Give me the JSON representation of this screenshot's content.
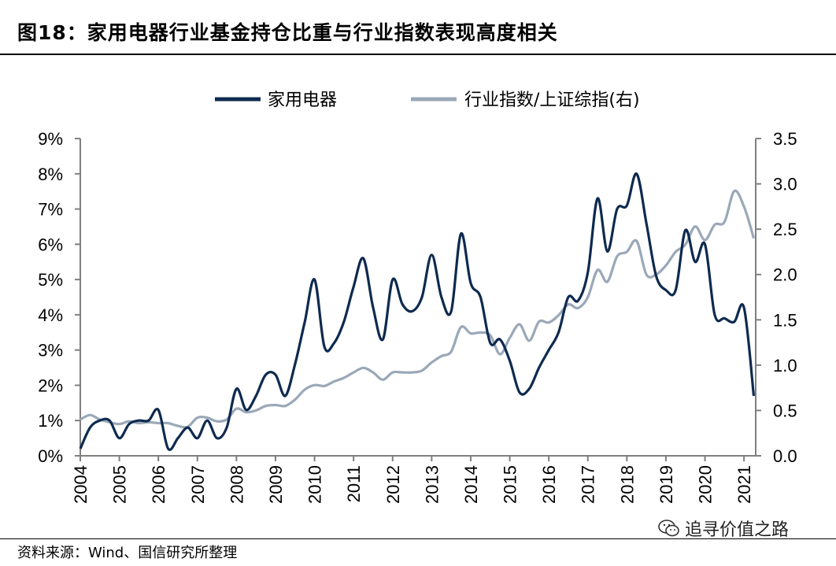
{
  "figure": {
    "title": "图18：家用电器行业基金持仓比重与行业指数表现高度相关",
    "source": "资料来源：Wind、国信研究所整理",
    "watermark": "追寻价值之路"
  },
  "colors": {
    "series_dark": "#0e2a4f",
    "series_light": "#9aa8b8",
    "axis": "#7f7f7f"
  },
  "chart_data": {
    "type": "line",
    "title": "",
    "xlabel": "",
    "ylabel": "",
    "x_ticks": [
      "2004",
      "2005",
      "2006",
      "2007",
      "2008",
      "2009",
      "2010",
      "2011",
      "2012",
      "2013",
      "2014",
      "2015",
      "2016",
      "2017",
      "2018",
      "2019",
      "2020",
      "2021"
    ],
    "xlim": [
      2004.0,
      2021.3
    ],
    "y_left": {
      "ticks": [
        "0%",
        "1%",
        "2%",
        "3%",
        "4%",
        "5%",
        "6%",
        "7%",
        "8%",
        "9%"
      ],
      "ylim": [
        0,
        9
      ],
      "unit": "%"
    },
    "y_right": {
      "ticks": [
        "0.0",
        "0.5",
        "1.0",
        "1.5",
        "2.0",
        "2.5",
        "3.0",
        "3.5"
      ],
      "ylim": [
        0,
        3.5
      ]
    },
    "legend_position": "top",
    "series": [
      {
        "name": "家用电器",
        "axis": "left",
        "points": [
          [
            2004.0,
            0.2
          ],
          [
            2004.25,
            0.8
          ],
          [
            2004.5,
            1.0
          ],
          [
            2004.75,
            1.0
          ],
          [
            2005.0,
            0.5
          ],
          [
            2005.25,
            0.9
          ],
          [
            2005.5,
            1.0
          ],
          [
            2005.75,
            1.0
          ],
          [
            2006.0,
            1.3
          ],
          [
            2006.25,
            0.2
          ],
          [
            2006.5,
            0.5
          ],
          [
            2006.75,
            0.8
          ],
          [
            2007.0,
            0.5
          ],
          [
            2007.25,
            1.0
          ],
          [
            2007.5,
            0.5
          ],
          [
            2007.75,
            0.8
          ],
          [
            2008.0,
            1.9
          ],
          [
            2008.25,
            1.3
          ],
          [
            2008.5,
            1.7
          ],
          [
            2008.75,
            2.3
          ],
          [
            2009.0,
            2.3
          ],
          [
            2009.25,
            1.7
          ],
          [
            2009.5,
            2.6
          ],
          [
            2009.75,
            3.8
          ],
          [
            2010.0,
            5.0
          ],
          [
            2010.25,
            3.1
          ],
          [
            2010.5,
            3.2
          ],
          [
            2010.75,
            3.8
          ],
          [
            2011.0,
            4.8
          ],
          [
            2011.25,
            5.6
          ],
          [
            2011.5,
            4.2
          ],
          [
            2011.75,
            3.3
          ],
          [
            2012.0,
            5.0
          ],
          [
            2012.25,
            4.3
          ],
          [
            2012.5,
            4.1
          ],
          [
            2012.75,
            4.5
          ],
          [
            2013.0,
            5.7
          ],
          [
            2013.25,
            4.5
          ],
          [
            2013.5,
            4.1
          ],
          [
            2013.75,
            6.3
          ],
          [
            2014.0,
            4.9
          ],
          [
            2014.25,
            4.5
          ],
          [
            2014.5,
            3.2
          ],
          [
            2014.75,
            3.3
          ],
          [
            2015.0,
            2.7
          ],
          [
            2015.25,
            1.8
          ],
          [
            2015.5,
            1.9
          ],
          [
            2015.75,
            2.5
          ],
          [
            2016.0,
            3.0
          ],
          [
            2016.25,
            3.5
          ],
          [
            2016.5,
            4.5
          ],
          [
            2016.75,
            4.4
          ],
          [
            2017.0,
            5.2
          ],
          [
            2017.25,
            7.3
          ],
          [
            2017.5,
            5.8
          ],
          [
            2017.75,
            7.0
          ],
          [
            2018.0,
            7.1
          ],
          [
            2018.25,
            8.0
          ],
          [
            2018.5,
            6.6
          ],
          [
            2018.75,
            5.1
          ],
          [
            2019.0,
            4.7
          ],
          [
            2019.25,
            4.7
          ],
          [
            2019.5,
            6.4
          ],
          [
            2019.75,
            5.5
          ],
          [
            2020.0,
            6.0
          ],
          [
            2020.25,
            4.0
          ],
          [
            2020.5,
            3.9
          ],
          [
            2020.75,
            3.8
          ],
          [
            2021.0,
            4.2
          ],
          [
            2021.25,
            1.7
          ]
        ]
      },
      {
        "name": "行业指数/上证综指(右)",
        "axis": "right",
        "points": [
          [
            2004.0,
            0.4
          ],
          [
            2004.25,
            0.45
          ],
          [
            2004.5,
            0.4
          ],
          [
            2004.75,
            0.37
          ],
          [
            2005.0,
            0.35
          ],
          [
            2005.25,
            0.38
          ],
          [
            2005.5,
            0.36
          ],
          [
            2005.75,
            0.37
          ],
          [
            2006.0,
            0.36
          ],
          [
            2006.25,
            0.36
          ],
          [
            2006.5,
            0.33
          ],
          [
            2006.75,
            0.32
          ],
          [
            2007.0,
            0.42
          ],
          [
            2007.25,
            0.42
          ],
          [
            2007.5,
            0.38
          ],
          [
            2007.75,
            0.4
          ],
          [
            2008.0,
            0.52
          ],
          [
            2008.25,
            0.48
          ],
          [
            2008.5,
            0.5
          ],
          [
            2008.75,
            0.55
          ],
          [
            2009.0,
            0.56
          ],
          [
            2009.25,
            0.55
          ],
          [
            2009.5,
            0.62
          ],
          [
            2009.75,
            0.73
          ],
          [
            2010.0,
            0.78
          ],
          [
            2010.25,
            0.77
          ],
          [
            2010.5,
            0.82
          ],
          [
            2010.75,
            0.86
          ],
          [
            2011.0,
            0.92
          ],
          [
            2011.25,
            0.97
          ],
          [
            2011.5,
            0.92
          ],
          [
            2011.75,
            0.84
          ],
          [
            2012.0,
            0.92
          ],
          [
            2012.25,
            0.92
          ],
          [
            2012.5,
            0.92
          ],
          [
            2012.75,
            0.94
          ],
          [
            2013.0,
            1.03
          ],
          [
            2013.25,
            1.1
          ],
          [
            2013.5,
            1.15
          ],
          [
            2013.75,
            1.42
          ],
          [
            2014.0,
            1.35
          ],
          [
            2014.25,
            1.36
          ],
          [
            2014.5,
            1.33
          ],
          [
            2014.75,
            1.12
          ],
          [
            2015.0,
            1.3
          ],
          [
            2015.25,
            1.45
          ],
          [
            2015.5,
            1.27
          ],
          [
            2015.75,
            1.48
          ],
          [
            2016.0,
            1.47
          ],
          [
            2016.25,
            1.55
          ],
          [
            2016.5,
            1.67
          ],
          [
            2016.75,
            1.63
          ],
          [
            2017.0,
            1.75
          ],
          [
            2017.25,
            2.05
          ],
          [
            2017.5,
            1.92
          ],
          [
            2017.75,
            2.2
          ],
          [
            2018.0,
            2.25
          ],
          [
            2018.25,
            2.37
          ],
          [
            2018.5,
            2.0
          ],
          [
            2018.75,
            2.0
          ],
          [
            2019.0,
            2.1
          ],
          [
            2019.25,
            2.25
          ],
          [
            2019.5,
            2.33
          ],
          [
            2019.75,
            2.53
          ],
          [
            2020.0,
            2.38
          ],
          [
            2020.25,
            2.55
          ],
          [
            2020.5,
            2.58
          ],
          [
            2020.75,
            2.92
          ],
          [
            2021.0,
            2.75
          ],
          [
            2021.25,
            2.4
          ]
        ]
      }
    ]
  }
}
